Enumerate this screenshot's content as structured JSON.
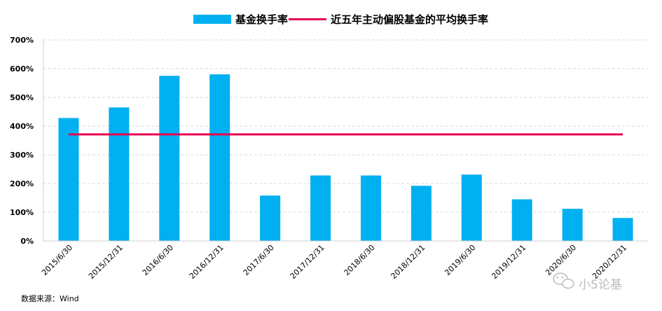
{
  "chart_data": {
    "type": "bar",
    "categories": [
      "2015/6/30",
      "2015/12/31",
      "2016/6/30",
      "2016/12/31",
      "2017/6/30",
      "2017/12/31",
      "2018/6/30",
      "2018/12/31",
      "2019/6/30",
      "2019/12/31",
      "2020/6/30",
      "2020/12/31"
    ],
    "series": [
      {
        "name": "基金换手率",
        "kind": "bar",
        "color": "#00B0F0",
        "values": [
          428,
          465,
          575,
          580,
          158,
          228,
          228,
          192,
          231,
          145,
          112,
          80
        ]
      },
      {
        "name": "近五年主动偏股基金的平均换手率",
        "kind": "line",
        "color": "#E8004F",
        "values": [
          371,
          371,
          371,
          371,
          371,
          371,
          371,
          371,
          371,
          371,
          371,
          371
        ]
      }
    ],
    "ylim": [
      0,
      700
    ],
    "yticks": [
      "0%",
      "100%",
      "200%",
      "300%",
      "400%",
      "500%",
      "600%",
      "700%"
    ],
    "grid": true,
    "legend_position": "top"
  },
  "source_note": "数据来源：Wind",
  "watermark": "小5论基"
}
